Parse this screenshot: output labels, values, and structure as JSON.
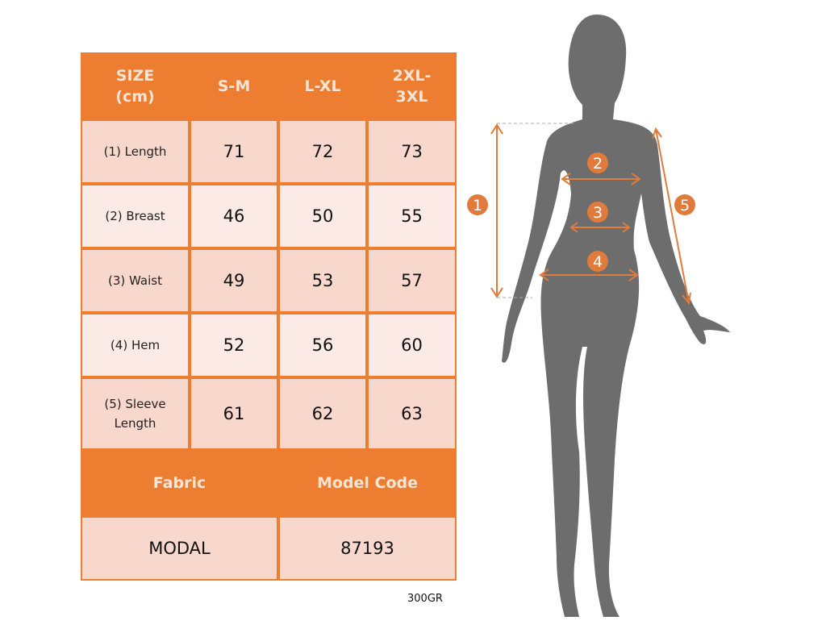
{
  "colors": {
    "accent": "#ed7d31",
    "row_dark": "#f8d7cc",
    "row_light": "#fbeae5",
    "silhouette": "#6d6d6d"
  },
  "table": {
    "headers": [
      "SIZE (cm)",
      "S-M",
      "L-XL",
      "2XL-3XL"
    ],
    "rows": [
      {
        "label": "(1) Length",
        "values": [
          "71",
          "72",
          "73"
        ]
      },
      {
        "label": "(2) Breast",
        "values": [
          "46",
          "50",
          "55"
        ]
      },
      {
        "label": "(3) Waist",
        "values": [
          "49",
          "53",
          "57"
        ]
      },
      {
        "label": "(4) Hem",
        "values": [
          "52",
          "56",
          "60"
        ]
      },
      {
        "label": "(5) Sleeve Length",
        "values": [
          "61",
          "62",
          "63"
        ]
      }
    ],
    "info_headers": [
      "Fabric",
      "Model Code"
    ],
    "info_values": [
      "MODAL",
      "87193"
    ]
  },
  "footnote": "300GR",
  "markers": [
    "1",
    "2",
    "3",
    "4",
    "5"
  ]
}
